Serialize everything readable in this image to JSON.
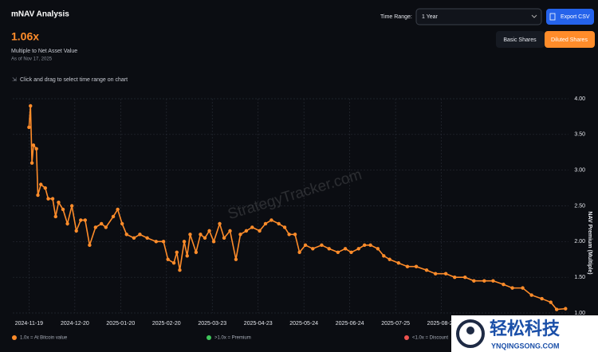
{
  "header": {
    "title": "mNAV Analysis",
    "value": "1.06x",
    "subtitle": "Multiple to Net Asset Value",
    "as_of": "As of Nov 17, 2025",
    "time_range_label": "Time Range:",
    "time_range": "1 Year",
    "export": "Export CSV",
    "toggles": [
      "Basic Shares",
      "Diluted Shares"
    ],
    "hint": "Click and drag to select time range on chart"
  },
  "watermark": "StrategyTracker.com",
  "legend_notes": [
    {
      "text": "1.0x = At Bitcoin value",
      "color": "#ff8c2a"
    },
    {
      "text": ">1.0x = Premium",
      "color": "#3fc55a"
    },
    {
      "text": "<1.0x = Discount",
      "color": "#ef5350"
    }
  ],
  "overlay": {
    "brand": "轻松科技",
    "site": "YNQINGSONG.COM"
  },
  "chart_data": {
    "type": "line",
    "y_label": "NAV Premium (Multiple)",
    "color": "#ff8c2a",
    "grid": true,
    "x": [
      "2024-11-19",
      "2024-11-20",
      "2024-11-21",
      "2024-11-22",
      "2024-11-24",
      "2024-11-25",
      "2024-11-27",
      "2024-11-30",
      "2024-12-02",
      "2024-12-05",
      "2024-12-07",
      "2024-12-09",
      "2024-12-12",
      "2024-12-15",
      "2024-12-18",
      "2024-12-21",
      "2024-12-24",
      "2024-12-27",
      "2024-12-30",
      "2025-01-03",
      "2025-01-07",
      "2025-01-10",
      "2025-01-15",
      "2025-01-18",
      "2025-01-21",
      "2025-01-24",
      "2025-01-29",
      "2025-02-02",
      "2025-02-07",
      "2025-02-13",
      "2025-02-18",
      "2025-02-21",
      "2025-02-25",
      "2025-02-27",
      "2025-03-01",
      "2025-03-04",
      "2025-03-06",
      "2025-03-08",
      "2025-03-12",
      "2025-03-15",
      "2025-03-18",
      "2025-03-21",
      "2025-03-24",
      "2025-03-28",
      "2025-03-31",
      "2025-04-04",
      "2025-04-08",
      "2025-04-11",
      "2025-04-15",
      "2025-04-19",
      "2025-04-24",
      "2025-04-28",
      "2025-05-02",
      "2025-05-07",
      "2025-05-11",
      "2025-05-14",
      "2025-05-18",
      "2025-05-21",
      "2025-05-25",
      "2025-05-30",
      "2025-06-05",
      "2025-06-10",
      "2025-06-16",
      "2025-06-21",
      "2025-06-25",
      "2025-06-30",
      "2025-07-04",
      "2025-07-08",
      "2025-07-13",
      "2025-07-17",
      "2025-07-21",
      "2025-07-27",
      "2025-08-02",
      "2025-08-08",
      "2025-08-15",
      "2025-08-21",
      "2025-08-28",
      "2025-09-03",
      "2025-09-10",
      "2025-09-16",
      "2025-09-23",
      "2025-09-29",
      "2025-10-06",
      "2025-10-12",
      "2025-10-19",
      "2025-10-25",
      "2025-11-01",
      "2025-11-07",
      "2025-11-11",
      "2025-11-17"
    ],
    "values": [
      3.6,
      3.9,
      3.1,
      3.35,
      3.3,
      2.65,
      2.8,
      2.75,
      2.6,
      2.6,
      2.35,
      2.55,
      2.45,
      2.25,
      2.5,
      2.15,
      2.3,
      2.3,
      1.95,
      2.2,
      2.25,
      2.2,
      2.35,
      2.45,
      2.25,
      2.1,
      2.05,
      2.1,
      2.05,
      2.0,
      2.0,
      1.75,
      1.7,
      1.85,
      1.6,
      2.0,
      1.8,
      2.1,
      1.85,
      2.1,
      2.05,
      2.15,
      2.0,
      2.25,
      2.05,
      2.15,
      1.75,
      2.1,
      2.15,
      2.2,
      2.15,
      2.25,
      2.3,
      2.25,
      2.2,
      2.1,
      2.1,
      1.85,
      1.95,
      1.9,
      1.95,
      1.9,
      1.85,
      1.9,
      1.85,
      1.9,
      1.95,
      1.95,
      1.9,
      1.8,
      1.75,
      1.7,
      1.65,
      1.65,
      1.6,
      1.55,
      1.55,
      1.5,
      1.5,
      1.45,
      1.45,
      1.45,
      1.4,
      1.35,
      1.35,
      1.25,
      1.2,
      1.15,
      1.05,
      1.06
    ],
    "xlim": [
      "2024-11-08",
      "2025-11-19"
    ],
    "xticks": [
      "2024-11-19",
      "2024-12-20",
      "2025-01-20",
      "2025-02-20",
      "2025-03-23",
      "2025-04-23",
      "2025-05-24",
      "2025-06-24",
      "2025-07-25",
      "2025-08-25"
    ],
    "ylim": [
      1,
      4
    ],
    "yticks": [
      {
        "value": 1,
        "label": "1.00"
      },
      {
        "value": 1.5,
        "label": "1.50"
      },
      {
        "value": 2,
        "label": "2.00"
      },
      {
        "value": 2.5,
        "label": "2.50"
      },
      {
        "value": 3,
        "label": "3.00"
      },
      {
        "value": 3.5,
        "label": "3.50"
      },
      {
        "value": 4,
        "label": "4.00"
      }
    ]
  }
}
